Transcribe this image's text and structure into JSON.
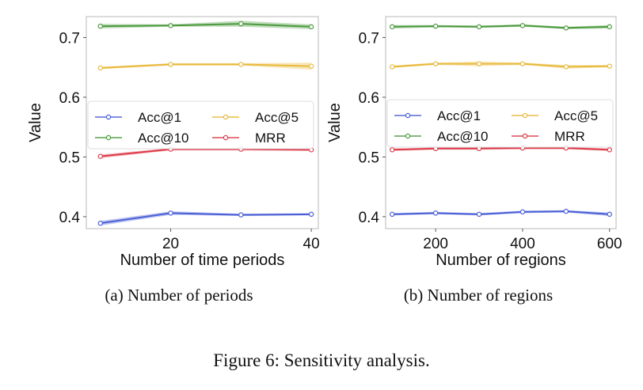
{
  "figure": {
    "caption": "Figure 6: Sensitivity analysis."
  },
  "colors": {
    "Acc@1": "#4a5fd6",
    "Acc@5": "#e8b93c",
    "Acc@10": "#4c9a3e",
    "MRR": "#de3b4a"
  },
  "chart_data": [
    {
      "type": "line",
      "subcaption": "(a) Number of periods",
      "xlabel": "Number of time periods",
      "ylabel": "Value",
      "xlim": [
        8,
        41
      ],
      "ylim": [
        0.38,
        0.735
      ],
      "xticks": [
        20,
        40
      ],
      "yticks": [
        0.4,
        0.5,
        0.6,
        0.7
      ],
      "grid": false,
      "legend_position": "center",
      "x": [
        10,
        20,
        30,
        40
      ],
      "series": [
        {
          "name": "Acc@1",
          "values": [
            0.389,
            0.406,
            0.403,
            0.404
          ],
          "band": [
            0.004,
            0.003,
            0.002,
            0.002
          ]
        },
        {
          "name": "Acc@5",
          "values": [
            0.649,
            0.655,
            0.655,
            0.652
          ],
          "band": [
            0.002,
            0.002,
            0.002,
            0.006
          ]
        },
        {
          "name": "Acc@10",
          "values": [
            0.719,
            0.72,
            0.723,
            0.718
          ],
          "band": [
            0.004,
            0.002,
            0.005,
            0.004
          ]
        },
        {
          "name": "MRR",
          "values": [
            0.501,
            0.513,
            0.513,
            0.512
          ],
          "band": [
            0.003,
            0.002,
            0.002,
            0.002
          ]
        }
      ]
    },
    {
      "type": "line",
      "subcaption": "(b) Number of regions",
      "xlabel": "Number of regions",
      "ylabel": "Value",
      "xlim": [
        85,
        615
      ],
      "ylim": [
        0.38,
        0.735
      ],
      "xticks": [
        200,
        400,
        600
      ],
      "yticks": [
        0.4,
        0.5,
        0.6,
        0.7
      ],
      "grid": false,
      "legend_position": "center",
      "x": [
        100,
        200,
        300,
        400,
        500,
        600
      ],
      "series": [
        {
          "name": "Acc@1",
          "values": [
            0.404,
            0.406,
            0.404,
            0.408,
            0.409,
            0.404
          ],
          "band": [
            0.002,
            0.002,
            0.002,
            0.002,
            0.002,
            0.003
          ]
        },
        {
          "name": "Acc@5",
          "values": [
            0.651,
            0.656,
            0.656,
            0.656,
            0.651,
            0.652
          ],
          "band": [
            0.002,
            0.002,
            0.004,
            0.002,
            0.003,
            0.002
          ]
        },
        {
          "name": "Acc@10",
          "values": [
            0.718,
            0.719,
            0.718,
            0.72,
            0.716,
            0.718
          ],
          "band": [
            0.003,
            0.002,
            0.002,
            0.002,
            0.002,
            0.003
          ]
        },
        {
          "name": "MRR",
          "values": [
            0.512,
            0.514,
            0.514,
            0.515,
            0.515,
            0.512
          ],
          "band": [
            0.002,
            0.002,
            0.002,
            0.002,
            0.002,
            0.002
          ]
        }
      ]
    }
  ]
}
